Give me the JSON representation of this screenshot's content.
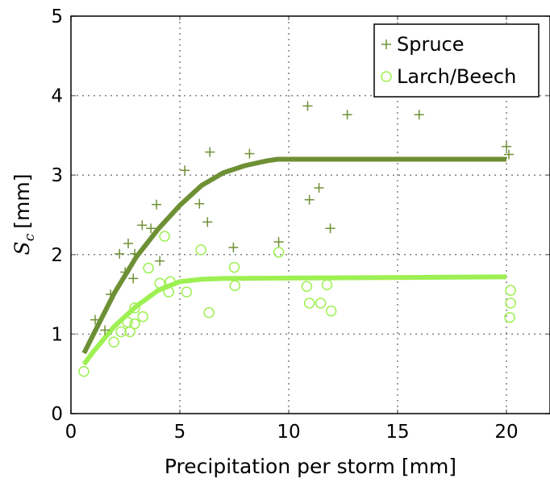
{
  "chart_data": {
    "type": "scatter",
    "title": "",
    "xlabel": "Precipitation per storm [mm]",
    "ylabel": {
      "symbol": "S",
      "subscript": "c",
      "unit": "[mm]"
    },
    "xlim": [
      0,
      22
    ],
    "ylim": [
      0,
      5
    ],
    "xticks": [
      0,
      5,
      10,
      15,
      20
    ],
    "yticks": [
      0,
      1,
      2,
      3,
      4,
      5
    ],
    "grid": true,
    "legend_position": "top-right",
    "series": [
      {
        "name": "Spruce",
        "marker": "plus",
        "color": "#6e9035",
        "points": [
          [
            1.11,
            1.18
          ],
          [
            1.56,
            1.05
          ],
          [
            1.82,
            1.5
          ],
          [
            2.23,
            2.01
          ],
          [
            2.49,
            1.78
          ],
          [
            2.63,
            2.14
          ],
          [
            2.86,
            1.7
          ],
          [
            2.93,
            2.01
          ],
          [
            3.27,
            2.37
          ],
          [
            3.67,
            2.33
          ],
          [
            3.93,
            2.63
          ],
          [
            4.08,
            1.92
          ],
          [
            5.23,
            3.06
          ],
          [
            5.9,
            2.64
          ],
          [
            6.27,
            2.41
          ],
          [
            6.38,
            3.29
          ],
          [
            7.46,
            2.09
          ],
          [
            8.2,
            3.27
          ],
          [
            9.54,
            2.16
          ],
          [
            10.87,
            3.87
          ],
          [
            10.95,
            2.69
          ],
          [
            11.39,
            2.84
          ],
          [
            11.91,
            2.33
          ],
          [
            12.69,
            3.76
          ],
          [
            15.99,
            3.76
          ],
          [
            20.0,
            3.36
          ],
          [
            20.11,
            3.26
          ]
        ],
        "fit": [
          [
            0.6,
            0.76
          ],
          [
            1,
            0.98
          ],
          [
            2,
            1.52
          ],
          [
            3,
            1.97
          ],
          [
            4,
            2.32
          ],
          [
            5,
            2.62
          ],
          [
            6,
            2.87
          ],
          [
            7,
            3.03
          ],
          [
            8,
            3.12
          ],
          [
            9,
            3.18
          ],
          [
            9.5,
            3.2
          ],
          [
            20,
            3.2
          ]
        ]
      },
      {
        "name": "Larch/Beech",
        "marker": "circle",
        "color": "#9ef052",
        "points": [
          [
            0.59,
            0.53
          ],
          [
            1.97,
            0.9
          ],
          [
            2.3,
            1.03
          ],
          [
            2.71,
            1.03
          ],
          [
            2.6,
            1.15
          ],
          [
            2.93,
            1.13
          ],
          [
            2.93,
            1.33
          ],
          [
            3.3,
            1.22
          ],
          [
            4.08,
            1.64
          ],
          [
            4.49,
            1.53
          ],
          [
            4.56,
            1.66
          ],
          [
            3.56,
            1.83
          ],
          [
            4.3,
            2.23
          ],
          [
            5.31,
            1.53
          ],
          [
            5.97,
            2.06
          ],
          [
            6.34,
            1.27
          ],
          [
            7.5,
            1.84
          ],
          [
            7.53,
            1.61
          ],
          [
            9.54,
            2.03
          ],
          [
            10.83,
            1.6
          ],
          [
            11.76,
            1.62
          ],
          [
            10.95,
            1.39
          ],
          [
            11.47,
            1.39
          ],
          [
            11.95,
            1.29
          ],
          [
            20.19,
            1.55
          ],
          [
            20.19,
            1.39
          ],
          [
            20.15,
            1.21
          ]
        ],
        "fit": [
          [
            0.6,
            0.62
          ],
          [
            1,
            0.77
          ],
          [
            2,
            1.1
          ],
          [
            3,
            1.35
          ],
          [
            4,
            1.55
          ],
          [
            5,
            1.66
          ],
          [
            6,
            1.69
          ],
          [
            7,
            1.7
          ],
          [
            20,
            1.72
          ]
        ]
      }
    ]
  }
}
